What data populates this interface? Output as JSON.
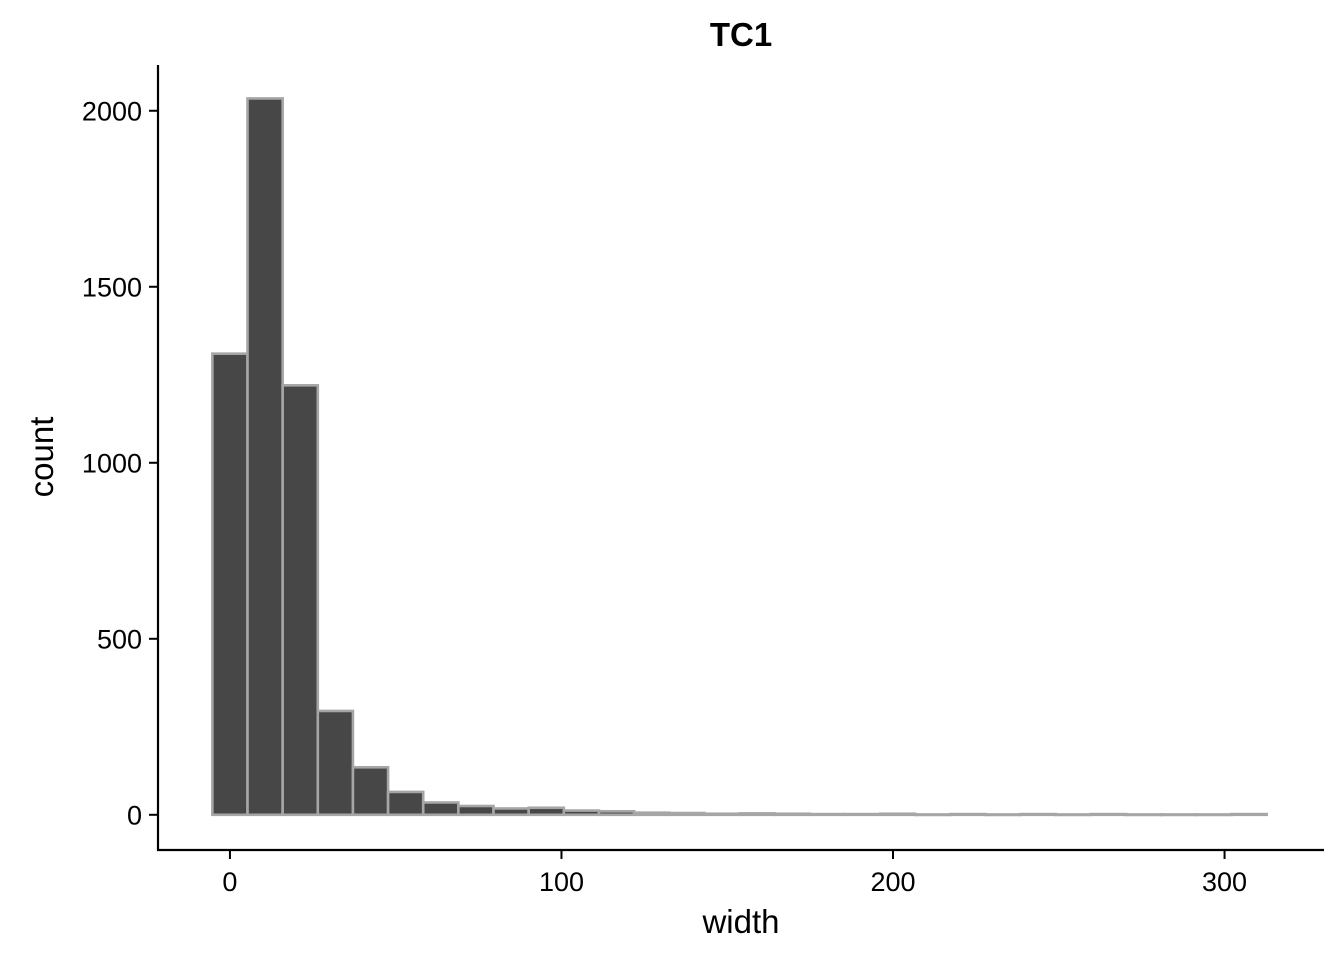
{
  "chart_data": {
    "type": "bar",
    "title": "TC1",
    "xlabel": "width",
    "ylabel": "count",
    "bin_width": 10.6,
    "bins": [
      {
        "x": 0.0,
        "count": 1310
      },
      {
        "x": 10.6,
        "count": 2035
      },
      {
        "x": 21.2,
        "count": 1220
      },
      {
        "x": 31.8,
        "count": 295
      },
      {
        "x": 42.4,
        "count": 135
      },
      {
        "x": 53.0,
        "count": 65
      },
      {
        "x": 63.6,
        "count": 35
      },
      {
        "x": 74.2,
        "count": 25
      },
      {
        "x": 84.8,
        "count": 18
      },
      {
        "x": 95.4,
        "count": 20
      },
      {
        "x": 106.0,
        "count": 12
      },
      {
        "x": 116.6,
        "count": 10
      },
      {
        "x": 127.2,
        "count": 6
      },
      {
        "x": 137.8,
        "count": 5
      },
      {
        "x": 148.4,
        "count": 3
      },
      {
        "x": 159.0,
        "count": 4
      },
      {
        "x": 169.6,
        "count": 3
      },
      {
        "x": 180.2,
        "count": 2
      },
      {
        "x": 190.8,
        "count": 2
      },
      {
        "x": 201.4,
        "count": 3
      },
      {
        "x": 212.0,
        "count": 1
      },
      {
        "x": 222.6,
        "count": 2
      },
      {
        "x": 233.2,
        "count": 1
      },
      {
        "x": 243.8,
        "count": 2
      },
      {
        "x": 254.4,
        "count": 1
      },
      {
        "x": 265.0,
        "count": 2
      },
      {
        "x": 275.6,
        "count": 1
      },
      {
        "x": 286.2,
        "count": 1
      },
      {
        "x": 296.8,
        "count": 1
      },
      {
        "x": 307.4,
        "count": 2
      }
    ],
    "xlim": [
      -21.7,
      330
    ],
    "ylim": [
      -100,
      2130
    ],
    "x_ticks": [
      0,
      100,
      200,
      300
    ],
    "y_ticks": [
      0,
      500,
      1000,
      1500,
      2000
    ],
    "grid": false,
    "colors": {
      "fill": "#474747",
      "outline": "#a6a6a6",
      "axis": "#000000"
    }
  }
}
